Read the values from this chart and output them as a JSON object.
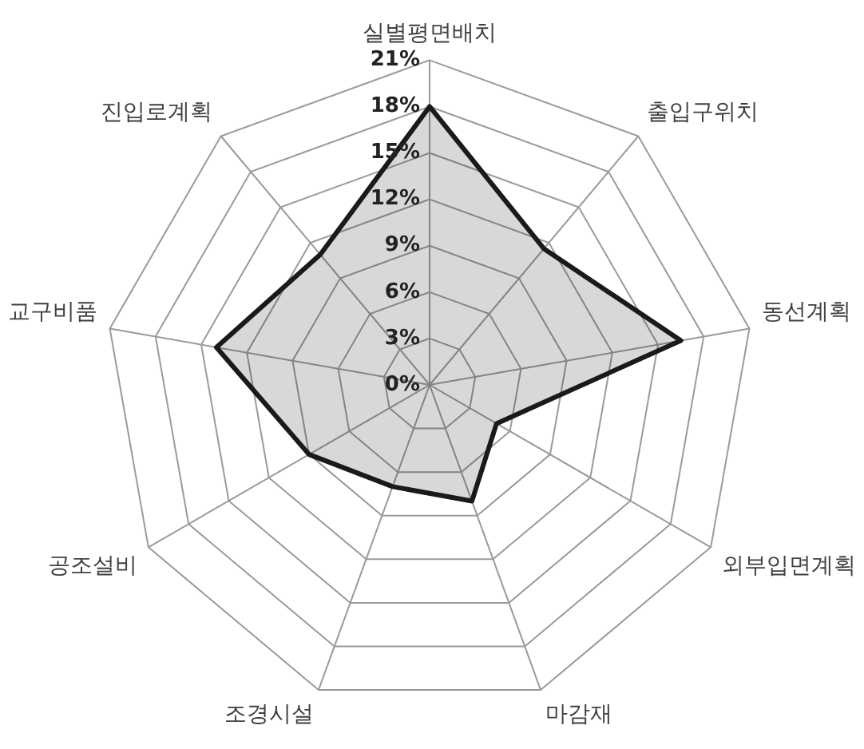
{
  "chart_data": {
    "type": "radar",
    "categories": [
      "실별평면배치",
      "출입구위치",
      "동선계획",
      "외부입면계획",
      "마감재",
      "조경시설",
      "공조설비",
      "교구비품",
      "진입로계획"
    ],
    "series": [
      {
        "color": "#1a1a1a",
        "values": [
          18,
          11.5,
          16.5,
          5,
          8,
          7,
          9,
          14,
          11
        ]
      }
    ],
    "ylim": [
      0,
      21
    ],
    "yticks": [
      {
        "value": 0,
        "label": "0%"
      },
      {
        "value": 3,
        "label": "3%"
      },
      {
        "value": 6,
        "label": "6%"
      },
      {
        "value": 9,
        "label": "9%"
      },
      {
        "value": 12,
        "label": "12%"
      },
      {
        "value": 15,
        "label": "15%"
      },
      {
        "value": 18,
        "label": "18%"
      },
      {
        "value": 21,
        "label": "21%"
      }
    ],
    "grid": true,
    "legend": false,
    "marker": "none"
  }
}
